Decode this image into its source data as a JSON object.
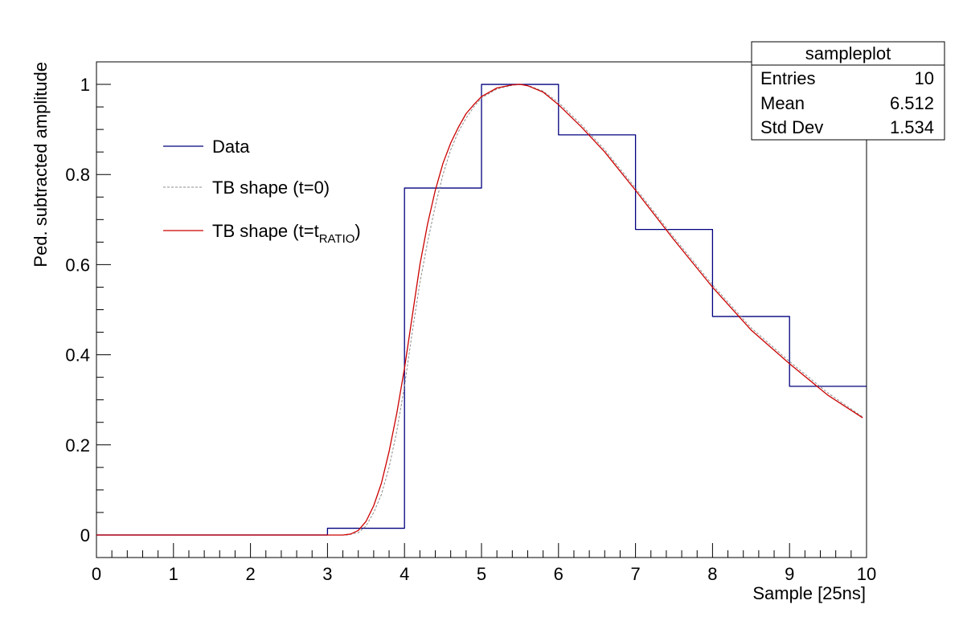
{
  "chart_data": {
    "type": "line",
    "xlabel": "Sample [25ns]",
    "ylabel": "Ped. subtracted amplitude",
    "xlim": [
      0,
      10
    ],
    "ylim": [
      -0.05,
      1.05
    ],
    "xticks": [
      0,
      1,
      2,
      3,
      4,
      5,
      6,
      7,
      8,
      9,
      10
    ],
    "xtick_labels": [
      "0",
      "1",
      "2",
      "3",
      "4",
      "5",
      "6",
      "7",
      "8",
      "9",
      "10"
    ],
    "yticks": [
      0,
      0.2,
      0.4,
      0.6,
      0.8,
      1
    ],
    "ytick_labels": [
      "0",
      "0.2",
      "0.4",
      "0.6",
      "0.8",
      "1"
    ],
    "grid": false,
    "legend": {
      "placement": "top-left",
      "entries": [
        {
          "label": "Data",
          "color": "#00007f",
          "style": "solid"
        },
        {
          "label": "TB shape (t=0)",
          "color": "#8c8c8c",
          "style": "dashed"
        },
        {
          "label_main": "TB shape (t=t",
          "label_sub": "RATIO",
          "label_end": ")",
          "color": "#cc0000",
          "style": "solid"
        }
      ]
    },
    "stats": {
      "title": "sampleplot",
      "rows": [
        {
          "label": "Entries",
          "value": "10"
        },
        {
          "label": "Mean",
          "value": "6.512"
        },
        {
          "label": "Std Dev",
          "value": "1.534"
        }
      ]
    },
    "series": [
      {
        "name": "Data",
        "kind": "histogram",
        "color": "#00007f",
        "bin_edges": [
          0,
          1,
          2,
          3,
          4,
          5,
          6,
          7,
          8,
          9,
          10
        ],
        "values": [
          0,
          0,
          0,
          0.015,
          0.77,
          1.0,
          0.888,
          0.678,
          0.485,
          0.33
        ]
      },
      {
        "name": "TB shape (t=0)",
        "kind": "curve",
        "color": "#8c8c8c",
        "x": [
          0,
          3.0,
          3.25,
          3.4,
          3.5,
          3.6,
          3.7,
          3.8,
          3.9,
          4.0,
          4.1,
          4.2,
          4.3,
          4.4,
          4.5,
          4.6,
          4.7,
          4.8,
          4.9,
          5.0,
          5.2,
          5.4,
          5.5,
          5.6,
          5.8,
          6.0,
          6.3,
          6.6,
          7.0,
          7.5,
          8.0,
          8.5,
          9.0,
          9.5,
          9.95
        ],
        "y": [
          0,
          0,
          0,
          0.005,
          0.02,
          0.05,
          0.09,
          0.15,
          0.23,
          0.33,
          0.45,
          0.56,
          0.65,
          0.73,
          0.8,
          0.855,
          0.895,
          0.925,
          0.95,
          0.97,
          0.99,
          0.998,
          1.0,
          0.998,
          0.985,
          0.96,
          0.91,
          0.855,
          0.77,
          0.66,
          0.555,
          0.46,
          0.385,
          0.315,
          0.262
        ]
      },
      {
        "name": "TB shape (t=tRATIO)",
        "kind": "curve",
        "color": "#cc0000",
        "x": [
          0,
          3.2,
          3.3,
          3.4,
          3.5,
          3.6,
          3.7,
          3.8,
          3.9,
          4.0,
          4.1,
          4.2,
          4.3,
          4.4,
          4.5,
          4.6,
          4.7,
          4.8,
          4.9,
          5.0,
          5.2,
          5.4,
          5.5,
          5.6,
          5.8,
          6.0,
          6.3,
          6.6,
          7.0,
          7.5,
          8.0,
          8.5,
          9.0,
          9.5,
          9.95
        ],
        "y": [
          0,
          0,
          0.002,
          0.01,
          0.03,
          0.065,
          0.115,
          0.185,
          0.27,
          0.37,
          0.485,
          0.6,
          0.69,
          0.765,
          0.825,
          0.87,
          0.905,
          0.935,
          0.955,
          0.973,
          0.992,
          0.999,
          1.0,
          0.997,
          0.983,
          0.955,
          0.905,
          0.85,
          0.765,
          0.655,
          0.55,
          0.455,
          0.38,
          0.31,
          0.26
        ]
      }
    ]
  }
}
